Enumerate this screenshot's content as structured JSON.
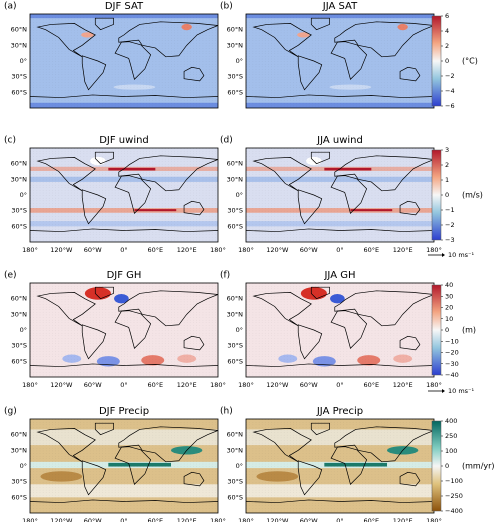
{
  "panels": [
    {
      "label": "(a)",
      "title": "DJF SAT"
    },
    {
      "label": "(b)",
      "title": "JJA SAT"
    },
    {
      "label": "(c)",
      "title": "DJF uwind"
    },
    {
      "label": "(d)",
      "title": "JJA uwind"
    },
    {
      "label": "(e)",
      "title": "DJF GH"
    },
    {
      "label": "(f)",
      "title": "JJA GH"
    },
    {
      "label": "(g)",
      "title": "DJF Precip"
    },
    {
      "label": "(h)",
      "title": "JJA Precip"
    }
  ],
  "lat_labels": [
    "60°N",
    "30°N",
    "0°",
    "30°S",
    "60°S"
  ],
  "lon_labels": [
    "180°",
    "120°W",
    "60°W",
    "0°",
    "60°E",
    "120°E",
    "180°"
  ],
  "colorbars": [
    {
      "unit": "(°C)",
      "ticks": [
        "6",
        "4",
        "2",
        "0",
        "−2",
        "−4",
        "−6"
      ]
    },
    {
      "unit": "(m/s)",
      "ticks": [
        "3",
        "2",
        "1",
        "0",
        "−1",
        "−2",
        "−3"
      ]
    },
    {
      "unit": "(m)",
      "ticks": [
        "40",
        "30",
        "20",
        "10",
        "0",
        "−10",
        "−20",
        "−30",
        "−40"
      ]
    },
    {
      "unit": "(mm/yr)",
      "ticks": [
        "400",
        "250",
        "100",
        "0",
        "−100",
        "−250",
        "−400"
      ]
    }
  ],
  "reference_arrow": "10 ms⁻¹"
}
